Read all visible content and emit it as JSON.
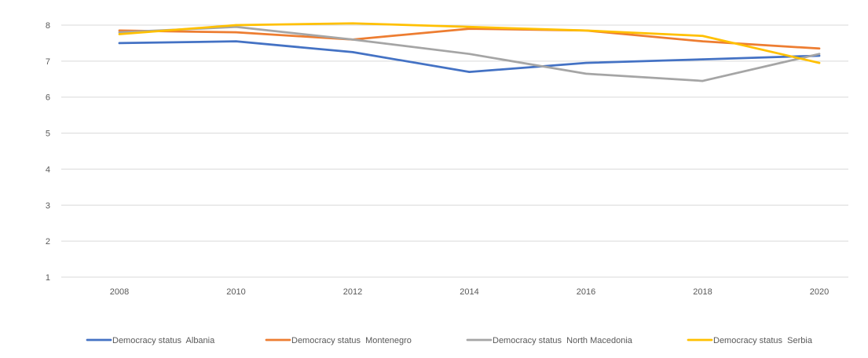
{
  "chart_data": {
    "type": "line",
    "title": "",
    "xlabel": "",
    "ylabel": "",
    "categories": [
      "2008",
      "2010",
      "2012",
      "2014",
      "2016",
      "2018",
      "2020"
    ],
    "ylim": [
      1,
      8
    ],
    "yticks": [
      "1",
      "2",
      "3",
      "4",
      "5",
      "6",
      "7",
      "8"
    ],
    "grid": true,
    "legend_position": "bottom",
    "series": [
      {
        "name": "Democracy status  Albania",
        "color": "#4472C4",
        "values": [
          7.5,
          7.55,
          7.25,
          6.7,
          6.95,
          7.05,
          7.15
        ]
      },
      {
        "name": "Democracy status  Montenegro",
        "color": "#ED7D31",
        "values": [
          7.85,
          7.8,
          7.6,
          7.9,
          7.85,
          7.55,
          7.35
        ]
      },
      {
        "name": "Democracy status  North Macedonia",
        "color": "#A5A5A5",
        "values": [
          7.8,
          7.95,
          7.6,
          7.2,
          6.65,
          6.45,
          7.2
        ]
      },
      {
        "name": "Democracy status  Serbia",
        "color": "#FFC000",
        "values": [
          7.75,
          8.0,
          8.05,
          7.95,
          7.85,
          7.7,
          6.95
        ]
      }
    ]
  }
}
